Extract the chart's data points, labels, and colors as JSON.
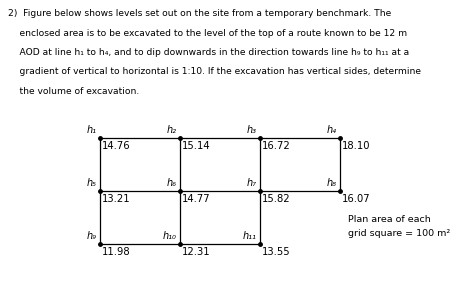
{
  "para_lines": [
    "2)  Figure below shows levels set out on the site from a temporary benchmark. The",
    "    enclosed area is to be excavated to the level of the top of a route known to be 12 m",
    "    AOD at line h₁ to h₄, and to dip downwards in the direction towards line h₉ to h₁₁ at a",
    "    gradient of vertical to horizontal is 1:10. If the excavation has vertical sides, determine",
    "    the volume of excavation."
  ],
  "node_labels": [
    "h₁",
    "h₂",
    "h₃",
    "h₄",
    "h₅",
    "h₆",
    "h₇",
    "h₈",
    "h₉",
    "h₁₀",
    "h₁₁"
  ],
  "node_values": [
    "14.76",
    "15.14",
    "16.72",
    "18.10",
    "13.21",
    "14.77",
    "15.82",
    "16.07",
    "11.98",
    "12.31",
    "13.55"
  ],
  "plan_area_line1": "Plan area of each",
  "plan_area_line2": "grid square = 100 m²",
  "grid_color": "#000000",
  "text_color": "#000000",
  "bg_color": "#ffffff"
}
